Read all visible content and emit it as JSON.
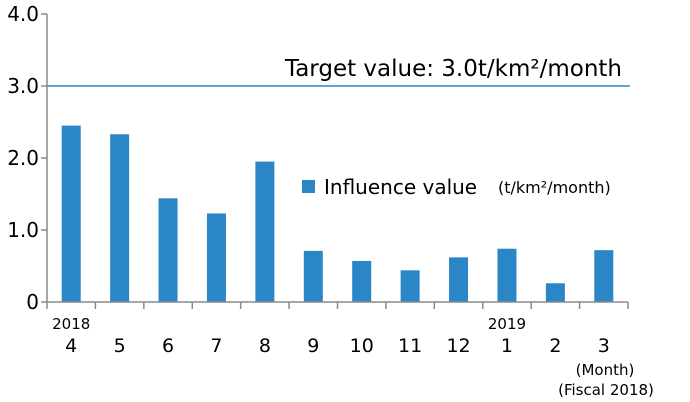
{
  "chart_data": {
    "type": "bar",
    "categories": [
      "4",
      "5",
      "6",
      "7",
      "8",
      "9",
      "10",
      "11",
      "12",
      "1",
      "2",
      "3"
    ],
    "year_labels": [
      {
        "category": "4",
        "text": "2018"
      },
      {
        "category": "1",
        "text": "2019"
      }
    ],
    "series": [
      {
        "name": "Influence value",
        "unit": "(t/km²/month)",
        "color": "#2a86c6",
        "values": [
          2.45,
          2.33,
          1.44,
          1.23,
          1.95,
          0.71,
          0.57,
          0.44,
          0.62,
          0.74,
          0.26,
          0.72
        ]
      }
    ],
    "ylim": [
      0,
      4.0
    ],
    "yticks": [
      "0",
      "1.0",
      "2.0",
      "3.0",
      "4.0"
    ],
    "ytick_values": [
      0,
      1,
      2,
      3,
      4
    ],
    "target": {
      "value": 3.0,
      "label": "Target value: 3.0t/km²/month",
      "color": "#2a86c6"
    },
    "x_unit_label": "(Month)",
    "fiscal_label": "(Fiscal 2018)",
    "legend_position": "right-middle",
    "grid": false
  }
}
